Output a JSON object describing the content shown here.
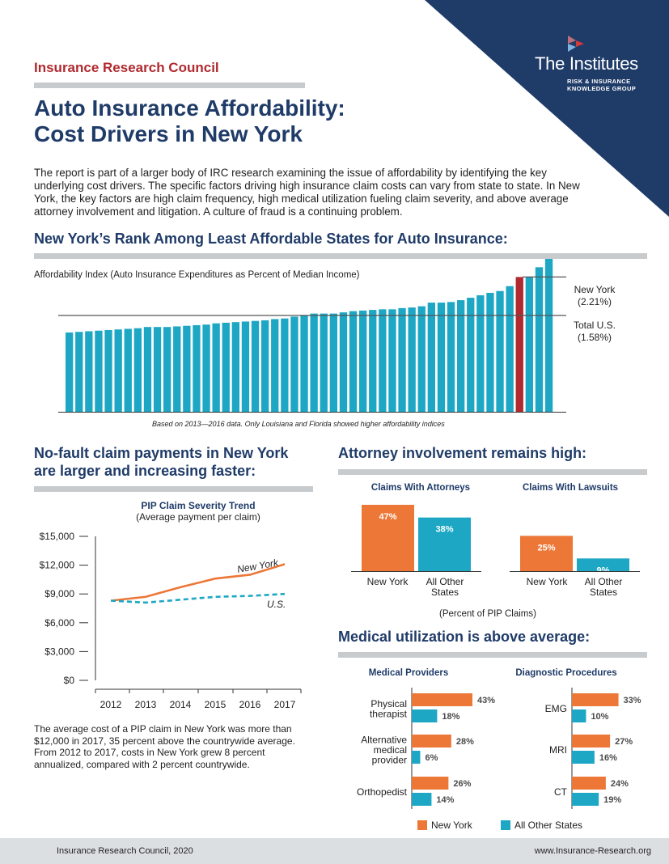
{
  "header": {
    "org": "Insurance Research Council",
    "title_line1": "Auto Insurance Affordability:",
    "title_line2": "Cost Drivers in New York",
    "logo_name": "The Institutes",
    "logo_tagline_1": "RISK & INSURANCE",
    "logo_tagline_2": "KNOWLEDGE GROUP",
    "logo_icon": "institutes-chevron-icon"
  },
  "intro": "The report is part of a larger body of IRC research examining the issue of affordability by identifying the key underlying cost drivers. The specific factors driving high insurance claim costs can vary from state to state. In New York, the key factors are high claim frequency, high medical utilization fueling claim severity, and above average attorney involvement and litigation. A culture of fraud is a continuing problem.",
  "rank_section": {
    "heading": "New York’s Rank Among Least Affordable States for Auto Insurance:",
    "axis_label": "Affordability Index (Auto Insurance Expenditures as Percent of Median Income)",
    "ny_label": "New York",
    "ny_value": "(2.21%)",
    "us_label": "Total U.S.",
    "us_value": "(1.58%)",
    "footnote": "Based on 2013—2016 data. Only Louisiana and Florida showed higher affordability indices"
  },
  "pip_section": {
    "heading_1": "No-fault claim payments in New York",
    "heading_2": "are larger and increasing faster:",
    "chart_title": "PIP Claim Severity Trend",
    "chart_subtitle": "(Average payment per claim)",
    "body": "The average cost of a PIP claim in New York was more than $12,000 in 2017, 35 percent above the countrywide average. From 2012 to 2017, costs in New York grew 8 percent annualized, compared with 2 percent countrywide."
  },
  "attorney_section": {
    "heading": "Attorney involvement remains high:",
    "group1_title": "Claims With Attorneys",
    "group2_title": "Claims With Lawsuits",
    "ny": "New York",
    "other_1": "All Other",
    "other_2": "States",
    "unit_note": "(Percent of PIP Claims)"
  },
  "medical_section": {
    "heading": "Medical utilization is above average:",
    "group1_title": "Medical Providers",
    "group2_title": "Diagnostic Procedures",
    "legend_ny": "New York",
    "legend_other": "All Other States"
  },
  "footer": {
    "left": "Insurance Research Council, 2020",
    "right": "www.Insurance-Research.org"
  },
  "colors": {
    "navy": "#1f3b68",
    "red": "#b02a2f",
    "teal": "#1da7c4",
    "orange": "#ec7737",
    "gray_rule": "#c8cbce"
  },
  "chart_data": [
    {
      "type": "bar",
      "title": "",
      "ylabel": "Affordability Index (Auto Insurance Expenditures as Percent of Median Income)",
      "values": [
        1.3,
        1.31,
        1.32,
        1.33,
        1.34,
        1.35,
        1.36,
        1.37,
        1.39,
        1.39,
        1.39,
        1.4,
        1.41,
        1.42,
        1.43,
        1.45,
        1.46,
        1.47,
        1.48,
        1.49,
        1.5,
        1.52,
        1.53,
        1.56,
        1.58,
        1.61,
        1.61,
        1.61,
        1.63,
        1.65,
        1.66,
        1.67,
        1.68,
        1.68,
        1.7,
        1.71,
        1.73,
        1.79,
        1.79,
        1.8,
        1.83,
        1.87,
        1.91,
        1.95,
        1.98,
        2.06,
        2.21,
        2.21,
        2.37,
        2.55
      ],
      "highlight_index": 46,
      "reference_lines": [
        {
          "name": "New York",
          "value": 2.21
        },
        {
          "name": "Total U.S.",
          "value": 1.58
        }
      ],
      "ylim": [
        0,
        2.6
      ]
    },
    {
      "type": "line",
      "title": "PIP Claim Severity Trend",
      "subtitle": "(Average payment per claim)",
      "x": [
        2012,
        2013,
        2014,
        2015,
        2016,
        2017
      ],
      "y_ticks": [
        "$0",
        "$3,000",
        "$6,000",
        "$9,000",
        "$12,000",
        "$15,000"
      ],
      "ylim": [
        0,
        15000
      ],
      "series": [
        {
          "name": "New York",
          "values": [
            8300,
            8700,
            9700,
            10600,
            11000,
            12100
          ],
          "color": "#ec7737"
        },
        {
          "name": "U.S.",
          "values": [
            8300,
            8100,
            8400,
            8700,
            8800,
            9000
          ],
          "color": "#1da7c4",
          "dashed": true
        }
      ]
    },
    {
      "type": "bar",
      "title": "Claims With Attorneys",
      "categories": [
        "New York",
        "All Other States"
      ],
      "values": [
        47,
        38
      ],
      "labels": [
        "47%",
        "38%"
      ],
      "ylim": [
        0,
        50
      ]
    },
    {
      "type": "bar",
      "title": "Claims With Lawsuits",
      "categories": [
        "New York",
        "All Other States"
      ],
      "values": [
        25,
        9
      ],
      "labels": [
        "25%",
        "9%"
      ],
      "ylim": [
        0,
        50
      ]
    },
    {
      "type": "bar",
      "orientation": "horizontal",
      "title": "Medical Providers",
      "categories": [
        "Physical therapist",
        "Alternative medical provider",
        "Orthopedist"
      ],
      "series": [
        {
          "name": "New York",
          "values": [
            43,
            28,
            26
          ],
          "labels": [
            "43%",
            "28%",
            "26%"
          ]
        },
        {
          "name": "All Other States",
          "values": [
            18,
            6,
            14
          ],
          "labels": [
            "18%",
            "6%",
            "14%"
          ]
        }
      ]
    },
    {
      "type": "bar",
      "orientation": "horizontal",
      "title": "Diagnostic Procedures",
      "categories": [
        "EMG",
        "MRI",
        "CT"
      ],
      "series": [
        {
          "name": "New York",
          "values": [
            33,
            27,
            24
          ],
          "labels": [
            "33%",
            "27%",
            "24%"
          ]
        },
        {
          "name": "All Other States",
          "values": [
            10,
            16,
            19
          ],
          "labels": [
            "10%",
            "16%",
            "19%"
          ]
        }
      ]
    }
  ]
}
